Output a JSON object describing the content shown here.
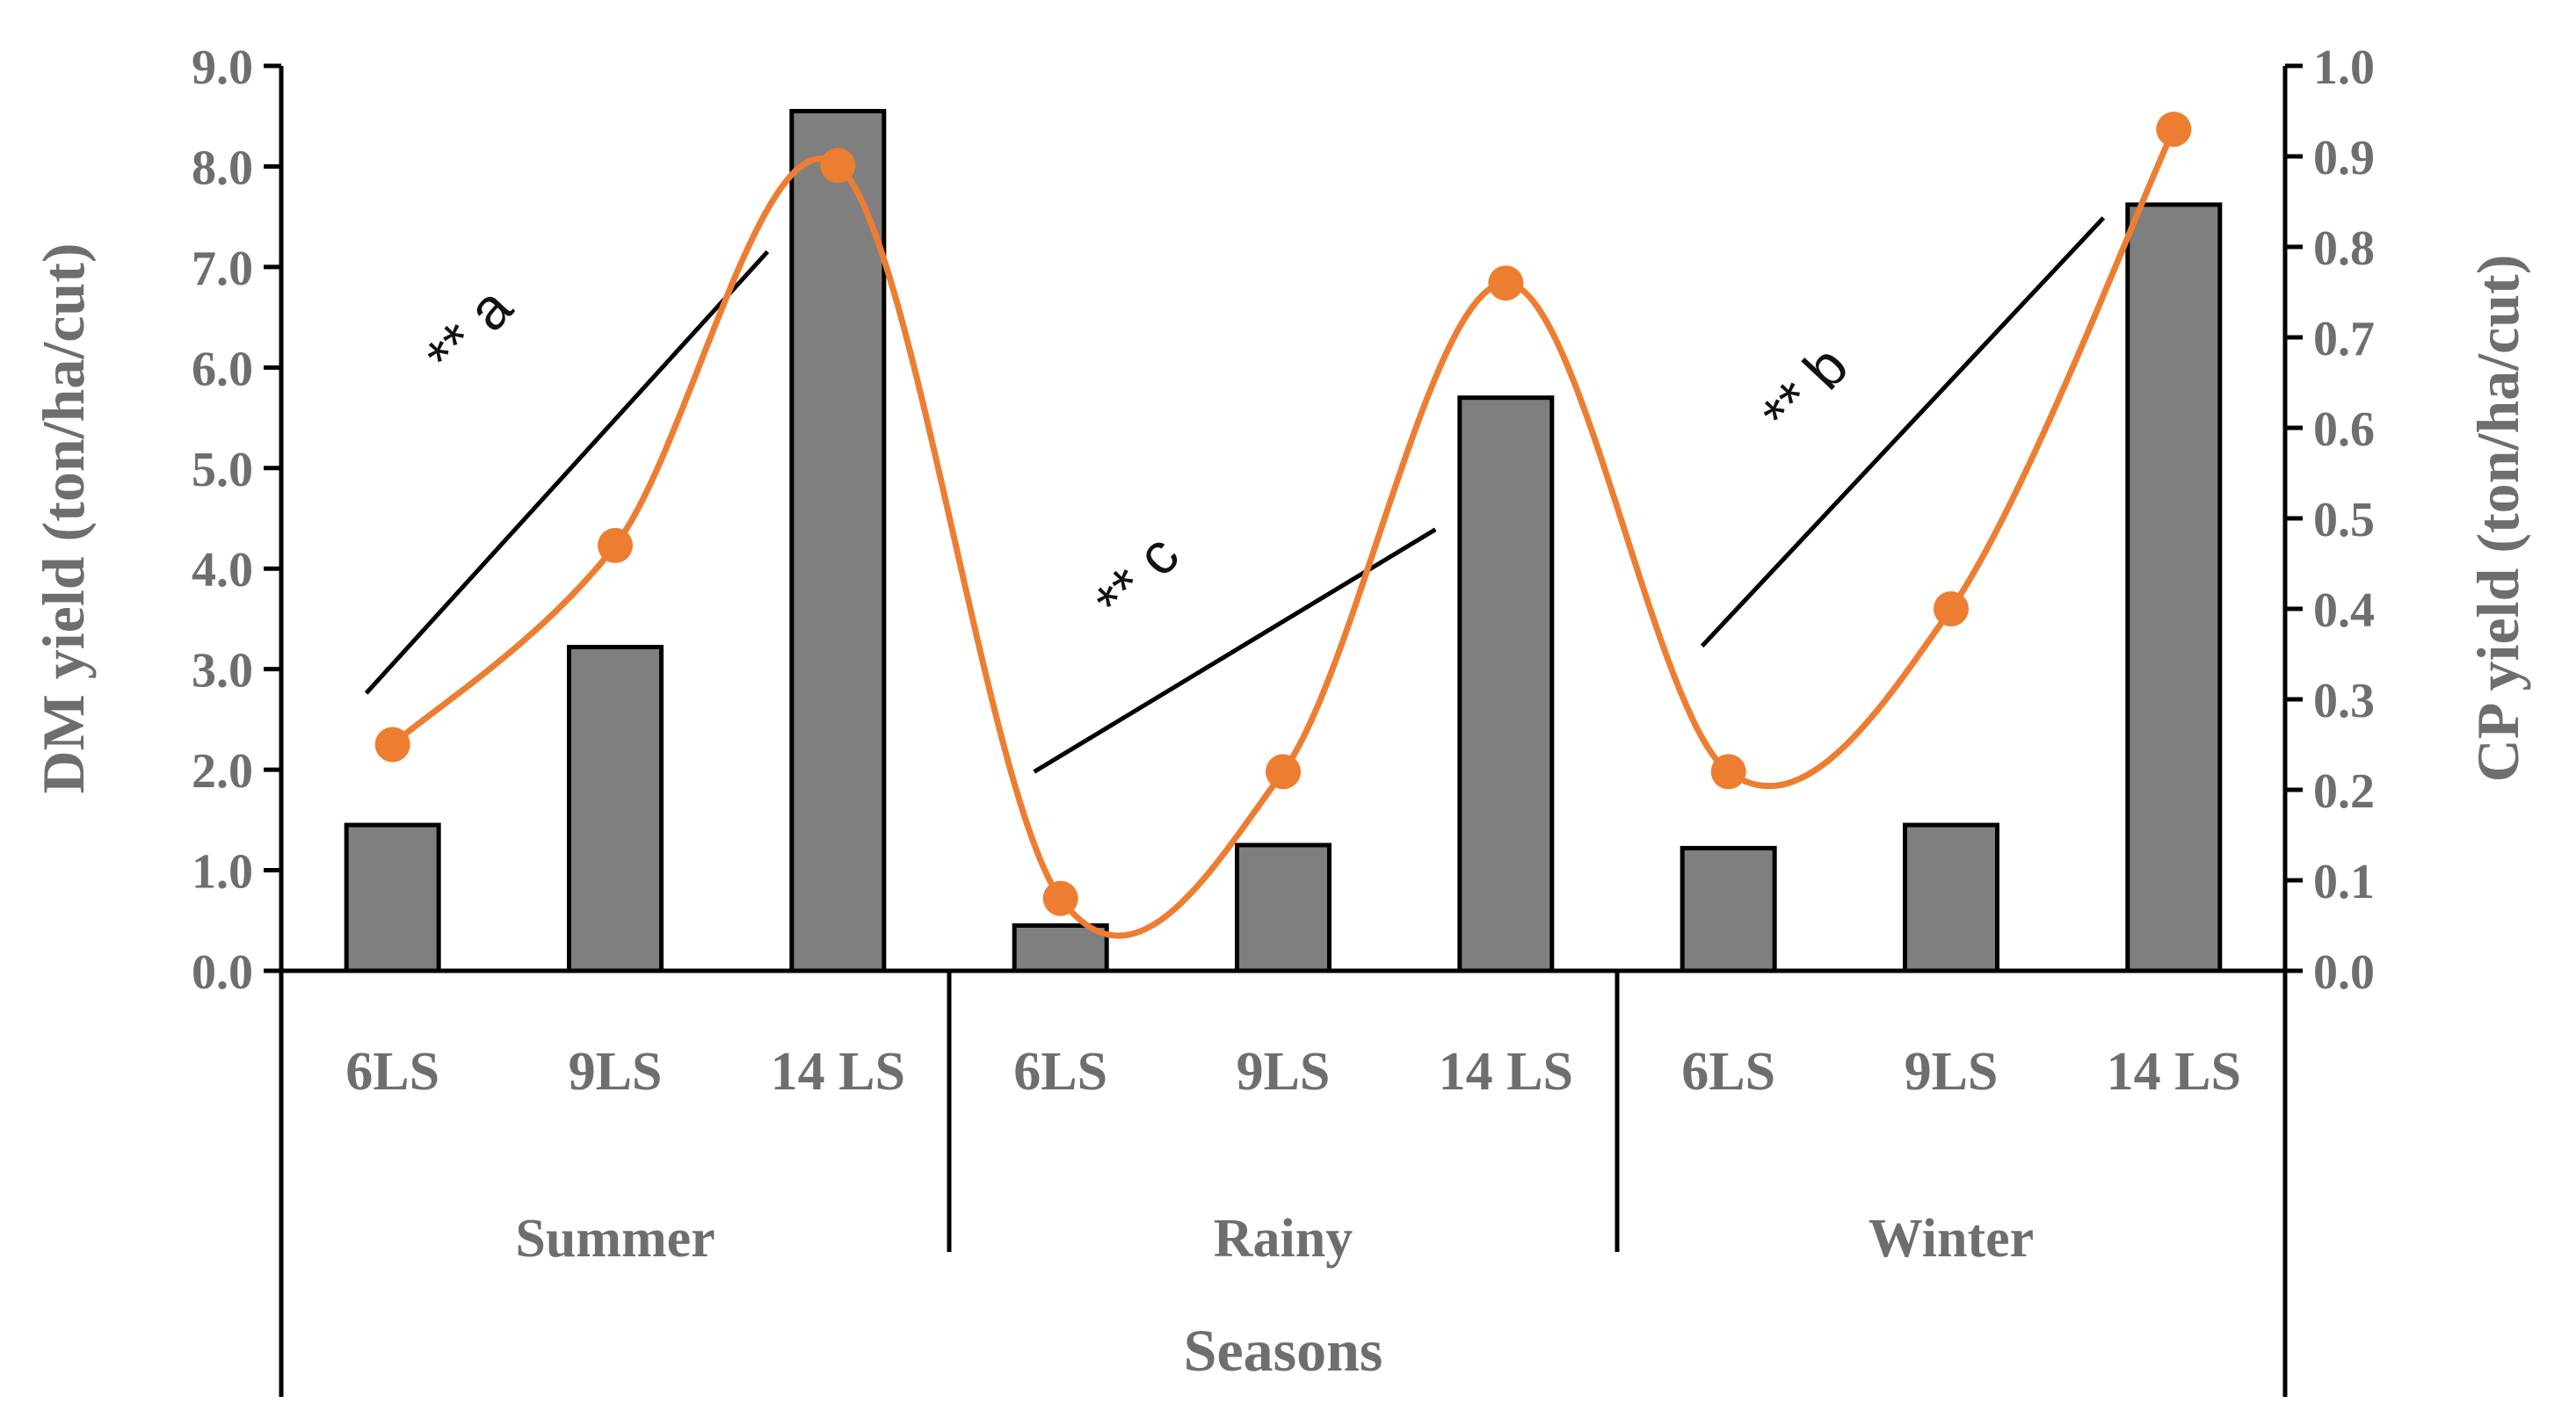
{
  "chart_data": {
    "type": "bar",
    "title": "",
    "xlabel": "Seasons",
    "ylabel": "DM yield (ton/ha/cut)",
    "y2label": "CP yield (ton/ha/cut)",
    "ylim": [
      0,
      9
    ],
    "y2lim": [
      0,
      1
    ],
    "yticks": [
      "0.0",
      "1.0",
      "2.0",
      "3.0",
      "4.0",
      "5.0",
      "6.0",
      "7.0",
      "8.0",
      "9.0"
    ],
    "y2ticks": [
      "0.0",
      "0.1",
      "0.2",
      "0.3",
      "0.4",
      "0.5",
      "0.6",
      "0.7",
      "0.8",
      "0.9",
      "1.0"
    ],
    "groups": [
      "Summer",
      "Rainy",
      "Winter"
    ],
    "categories": [
      "6LS",
      "9LS",
      "14 LS",
      "6LS",
      "9LS",
      "14 LS",
      "6LS",
      "9LS",
      "14 LS"
    ],
    "series": [
      {
        "name": "DM yield",
        "type": "bar",
        "axis": "left",
        "color": "#7f7f7f",
        "values": [
          1.45,
          3.22,
          8.55,
          0.45,
          1.25,
          5.7,
          1.22,
          1.45,
          7.62
        ]
      },
      {
        "name": "CP yield",
        "type": "line",
        "axis": "right",
        "color": "#ed7d31",
        "values": [
          0.25,
          0.47,
          0.89,
          0.08,
          0.22,
          0.76,
          0.22,
          0.4,
          0.93
        ]
      }
    ],
    "annotations": [
      {
        "text": "** a",
        "group": "Summer"
      },
      {
        "text": "** c",
        "group": "Rainy"
      },
      {
        "text": "** b",
        "group": "Winter"
      }
    ]
  }
}
